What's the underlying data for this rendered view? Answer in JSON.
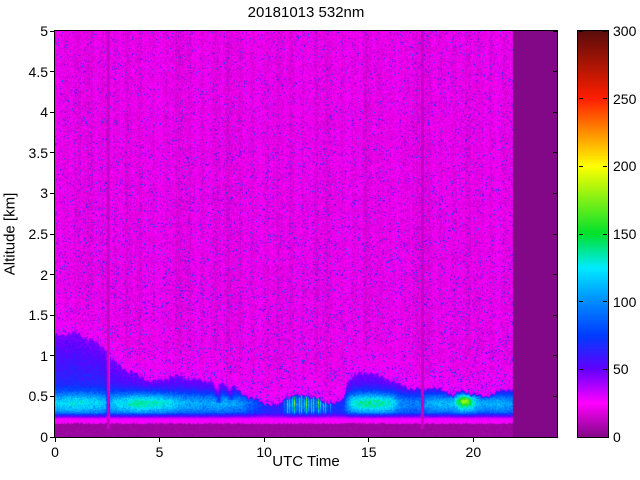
{
  "figure": {
    "title": "20181013 532nm",
    "xlabel": "UTC Time",
    "ylabel": "Altitude [km]"
  },
  "chart_data": {
    "type": "heatmap",
    "title": "20181013 532nm",
    "xlabel": "UTC Time",
    "ylabel": "Altitude [km]",
    "x_range": [
      0,
      24
    ],
    "y_range": [
      0,
      5
    ],
    "x_ticks": [
      0,
      5,
      10,
      15,
      20
    ],
    "y_ticks": [
      0,
      0.5,
      1,
      1.5,
      2,
      2.5,
      3,
      3.5,
      4,
      4.5,
      5
    ],
    "grid": false,
    "legend": "colorbar-right",
    "colorbar": {
      "range": [
        0,
        300
      ],
      "ticks": [
        0,
        50,
        100,
        150,
        200,
        250,
        300
      ],
      "colormap_stops": [
        [
          0,
          [
            130,
            8,
            135
          ]
        ],
        [
          25,
          [
            255,
            0,
            255
          ]
        ],
        [
          50,
          [
            98,
            0,
            255
          ]
        ],
        [
          75,
          [
            0,
            60,
            255
          ]
        ],
        [
          100,
          [
            0,
            140,
            255
          ]
        ],
        [
          125,
          [
            0,
            235,
            255
          ]
        ],
        [
          150,
          [
            0,
            225,
            45
          ]
        ],
        [
          200,
          [
            255,
            255,
            0
          ]
        ],
        [
          250,
          [
            255,
            30,
            0
          ]
        ],
        [
          300,
          [
            90,
            12,
            10
          ]
        ]
      ]
    },
    "field_model": {
      "background": {
        "value": 20,
        "noise": 6,
        "speckle_prob": 0.055,
        "speckle_min": 12,
        "speckle_max": 70,
        "streak_amp": 3
      },
      "no_data": {
        "x_start": 21.92,
        "value": 0
      },
      "surface_bands": {
        "dark_top_km": 0.165,
        "dark_value": 3,
        "glow_top_km": 0.3,
        "glow_value": 26
      },
      "gap_lines": {
        "x": [
          2.55,
          17.57
        ],
        "half_width": 0.055,
        "value": 13,
        "y_min": 0.1
      },
      "boundary_layer": {
        "base_value": 46,
        "surface_boost": 44,
        "noise": 12,
        "top_km": [
          [
            0,
            1.28
          ],
          [
            1,
            1.3
          ],
          [
            1.8,
            1.22
          ],
          [
            2.5,
            1.12
          ],
          [
            2.7,
            1.0
          ],
          [
            3,
            0.93
          ],
          [
            3.5,
            0.84
          ],
          [
            4,
            0.78
          ],
          [
            4.5,
            0.7
          ],
          [
            5,
            0.73
          ],
          [
            5.5,
            0.78
          ],
          [
            6,
            0.8
          ],
          [
            6.5,
            0.75
          ],
          [
            7,
            0.72
          ],
          [
            7.5,
            0.7
          ],
          [
            8,
            0.68
          ],
          [
            8.5,
            0.66
          ],
          [
            9,
            0.56
          ],
          [
            9.5,
            0.5
          ],
          [
            10,
            0.44
          ],
          [
            10.7,
            0.4
          ],
          [
            11,
            0.5
          ],
          [
            11.5,
            0.52
          ],
          [
            12,
            0.55
          ],
          [
            12.5,
            0.5
          ],
          [
            13,
            0.46
          ],
          [
            13.5,
            0.42
          ],
          [
            13.8,
            0.5
          ],
          [
            14,
            0.72
          ],
          [
            14.5,
            0.8
          ],
          [
            15,
            0.83
          ],
          [
            15.5,
            0.79
          ],
          [
            16,
            0.75
          ],
          [
            16.5,
            0.68
          ],
          [
            17,
            0.62
          ],
          [
            17.5,
            0.6
          ],
          [
            18,
            0.63
          ],
          [
            18.5,
            0.6
          ],
          [
            19,
            0.55
          ],
          [
            19.5,
            0.6
          ],
          [
            20,
            0.56
          ],
          [
            20.5,
            0.5
          ],
          [
            21,
            0.55
          ],
          [
            21.5,
            0.6
          ],
          [
            21.92,
            0.63
          ]
        ],
        "cyan_band": {
          "center_km": 0.42,
          "sigma_km": 0.13,
          "amp": [
            [
              0,
              45
            ],
            [
              1,
              55
            ],
            [
              2,
              50
            ],
            [
              2.5,
              40
            ],
            [
              3,
              55
            ],
            [
              4,
              75
            ],
            [
              5,
              70
            ],
            [
              5.5,
              60
            ],
            [
              6,
              50
            ],
            [
              7,
              45
            ],
            [
              8,
              50
            ],
            [
              9,
              45
            ],
            [
              9.8,
              25
            ],
            [
              10.4,
              12
            ],
            [
              10.9,
              15
            ],
            [
              11.1,
              85
            ],
            [
              12,
              85
            ],
            [
              13,
              80
            ],
            [
              13.3,
              20
            ],
            [
              13.8,
              20
            ],
            [
              14.2,
              65
            ],
            [
              15,
              75
            ],
            [
              16,
              70
            ],
            [
              16.5,
              40
            ],
            [
              17.2,
              35
            ],
            [
              17.8,
              50
            ],
            [
              18.5,
              55
            ],
            [
              19,
              60
            ],
            [
              19.5,
              85
            ],
            [
              19.8,
              80
            ],
            [
              20.3,
              55
            ],
            [
              21,
              55
            ],
            [
              21.5,
              50
            ],
            [
              21.92,
              45
            ]
          ]
        },
        "streak_zone": {
          "x_min": 11.0,
          "x_max": 13.25,
          "freq": 55,
          "depth": 0.55
        },
        "green_spot": {
          "x": 19.6,
          "y_km": 0.45,
          "amp": 45,
          "sigma_x": 0.35,
          "sigma_y": 0.06
        },
        "wisps": [
          {
            "x": 7.75,
            "slope": 0.6,
            "width": 0.13,
            "depth": 28,
            "y_min": 0.42,
            "y_max": 0.85
          },
          {
            "x": 8.35,
            "slope": 0.5,
            "width": 0.12,
            "depth": 24,
            "y_min": 0.45,
            "y_max": 0.8
          }
        ]
      }
    }
  }
}
